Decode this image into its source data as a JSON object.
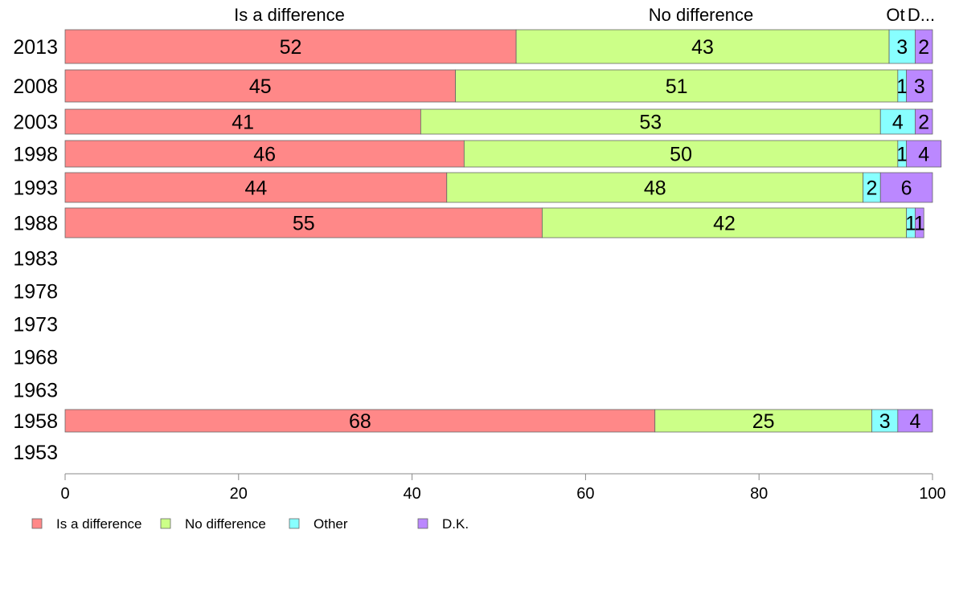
{
  "chart_data": {
    "type": "bar",
    "orientation": "horizontal",
    "stacked": true,
    "categories": [
      "2013",
      "2008",
      "2003",
      "1998",
      "1993",
      "1988",
      "1983",
      "1978",
      "1973",
      "1968",
      "1963",
      "1958",
      "1953"
    ],
    "series": [
      {
        "name": "Is a difference",
        "color": "#ff8888",
        "values": [
          52,
          45,
          41,
          46,
          44,
          55,
          null,
          null,
          null,
          null,
          null,
          68,
          null
        ]
      },
      {
        "name": "No difference",
        "color": "#ccff88",
        "values": [
          43,
          51,
          53,
          50,
          48,
          42,
          null,
          null,
          null,
          null,
          null,
          25,
          null
        ]
      },
      {
        "name": "Other",
        "color": "#88ffff",
        "values": [
          3,
          1,
          4,
          1,
          2,
          1,
          null,
          null,
          null,
          null,
          null,
          3,
          null
        ]
      },
      {
        "name": "D.K.",
        "color": "#bb88ff",
        "values": [
          2,
          3,
          2,
          4,
          6,
          1,
          null,
          null,
          null,
          null,
          null,
          4,
          null
        ]
      }
    ],
    "column_headers": [
      "Is a difference",
      "No difference",
      "Ot",
      "D..."
    ],
    "xlim": [
      0,
      100
    ],
    "xticks": [
      "0",
      "20",
      "40",
      "60",
      "80",
      "100"
    ],
    "legend": {
      "position": "bottom-left",
      "items": [
        "Is a difference",
        "No difference",
        "Other",
        "D.K."
      ]
    },
    "grid": false
  }
}
